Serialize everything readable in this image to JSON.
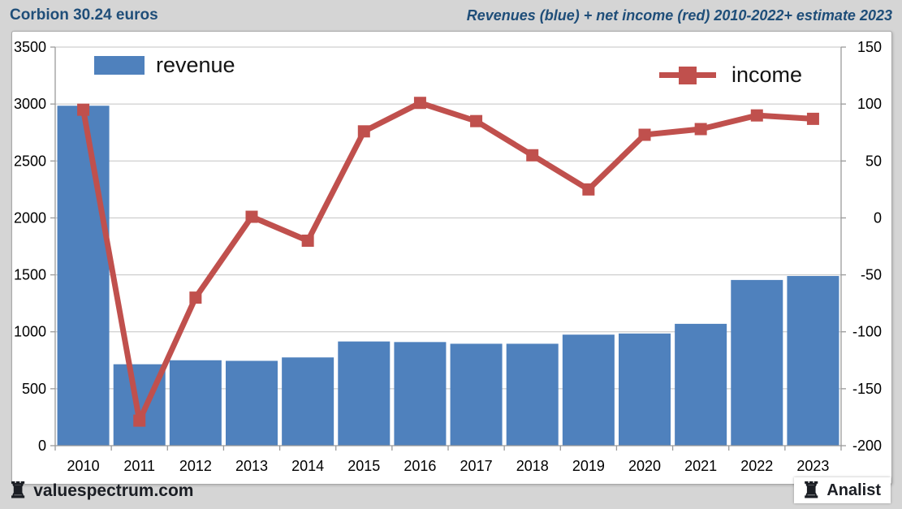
{
  "header": {
    "title": "Corbion 30.24 euros",
    "subtitle": "Revenues (blue) + net income (red) 2010-2022+ estimate 2023"
  },
  "legend": {
    "revenue_label": "revenue",
    "income_label": "income"
  },
  "footer": {
    "site": "valuespectrum.com",
    "brand": "Analist",
    "rook_icon": "♜"
  },
  "colors": {
    "bar_blue": "#4f81bd",
    "line_red": "#c0504d",
    "header_text": "#1f4e79",
    "grid": "#c3c3c3",
    "axis": "#9a9a9a",
    "page_bg": "#d5d5d5"
  },
  "chart_data": {
    "type": "bar",
    "title": "Revenues (blue) + net income (red) 2010-2022+ estimate 2023",
    "categories": [
      "2010",
      "2011",
      "2012",
      "2013",
      "2014",
      "2015",
      "2016",
      "2017",
      "2018",
      "2019",
      "2020",
      "2021",
      "2022",
      "2023"
    ],
    "series": [
      {
        "name": "revenue",
        "type": "bar",
        "axis": "left",
        "values": [
          2985,
          715,
          750,
          745,
          775,
          915,
          910,
          895,
          895,
          975,
          985,
          1070,
          1455,
          1490
        ]
      },
      {
        "name": "income",
        "type": "line",
        "axis": "right",
        "values": [
          95,
          -178,
          -70,
          1,
          -20,
          76,
          101,
          85,
          55,
          25,
          73,
          78,
          90,
          87
        ]
      }
    ],
    "left_axis": {
      "min": 0,
      "max": 3500,
      "ticks": [
        3500,
        3000,
        2500,
        2000,
        1500,
        1000,
        500,
        0
      ]
    },
    "right_axis": {
      "min": -200,
      "max": 150,
      "ticks": [
        150,
        100,
        50,
        0,
        -50,
        -100,
        -150,
        -200
      ]
    },
    "grid": true,
    "legend_position": "top-inside"
  }
}
